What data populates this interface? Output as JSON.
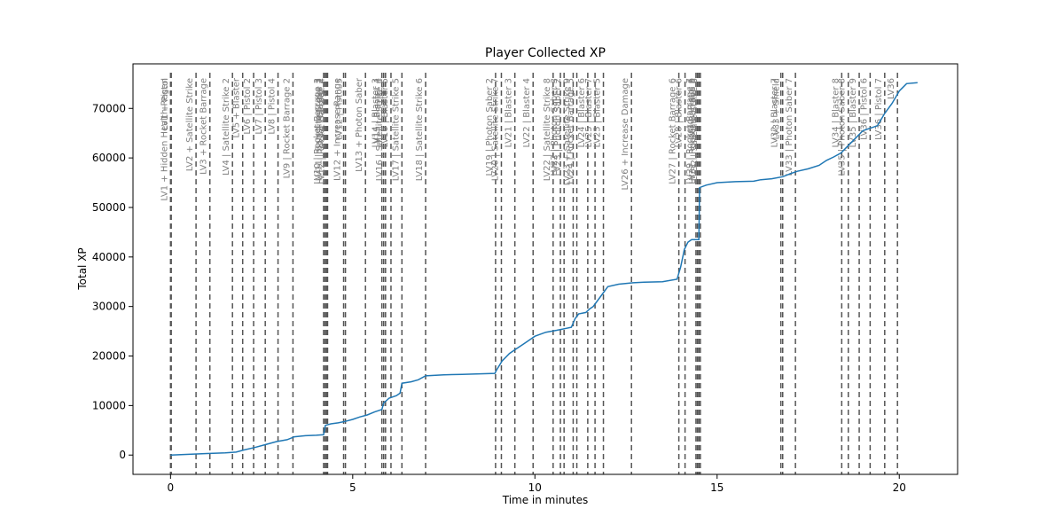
{
  "chart_data": {
    "type": "line",
    "title": "Player Collected XP",
    "xlabel": "Time in minutes",
    "ylabel": "Total XP",
    "xlim": [
      -1.03,
      21.6
    ],
    "ylim": [
      -3900,
      79000
    ],
    "xticks": [
      0,
      5,
      10,
      15,
      20
    ],
    "yticks": [
      0,
      10000,
      20000,
      30000,
      40000,
      50000,
      60000,
      70000
    ],
    "grid": false,
    "line_color": "#1f77b4",
    "event_line_color": "#555555",
    "event_label_color": "#7f7f7f",
    "series": [
      {
        "x": [
          0,
          0.5,
          1.0,
          1.5,
          1.8,
          2.0,
          2.3,
          2.6,
          2.9,
          3.2,
          3.4,
          3.7,
          4.0,
          4.2,
          4.25,
          4.4,
          4.6,
          4.8,
          5.0,
          5.2,
          5.4,
          5.6,
          5.8,
          5.85,
          6.0,
          6.2,
          6.3,
          6.35,
          6.6,
          6.8,
          7.0,
          7.5,
          8.0,
          8.5,
          8.9,
          8.95,
          9.1,
          9.3,
          9.5,
          9.7,
          9.9,
          10.0,
          10.3,
          10.6,
          10.8,
          11.0,
          11.1,
          11.2,
          11.4,
          11.5,
          11.6,
          11.8,
          12.0,
          12.3,
          12.7,
          13.0,
          13.5,
          13.9,
          14.0,
          14.1,
          14.2,
          14.3,
          14.4,
          14.5,
          14.52,
          14.7,
          15.0,
          15.5,
          16.0,
          16.2,
          16.5,
          16.8,
          17.0,
          17.2,
          17.5,
          17.8,
          18.0,
          18.2,
          18.4,
          18.6,
          18.8,
          19.0,
          19.2,
          19.4,
          19.6,
          19.8,
          20.0,
          20.2,
          20.5
        ],
        "y": [
          0,
          150,
          300,
          450,
          600,
          1000,
          1500,
          2100,
          2700,
          3100,
          3700,
          3900,
          4000,
          4100,
          6000,
          6300,
          6500,
          6800,
          7200,
          7700,
          8100,
          8700,
          9200,
          10500,
          11500,
          12000,
          12500,
          14500,
          14800,
          15200,
          16000,
          16200,
          16300,
          16400,
          16500,
          17200,
          19000,
          20500,
          21500,
          22500,
          23500,
          24000,
          24800,
          25200,
          25500,
          25800,
          27500,
          28500,
          28800,
          29500,
          30000,
          32000,
          34000,
          34500,
          34800,
          34900,
          35000,
          35500,
          38000,
          41500,
          43000,
          43500,
          43500,
          43500,
          54000,
          54500,
          55000,
          55200,
          55300,
          55600,
          55800,
          56200,
          56800,
          57300,
          57800,
          58500,
          59500,
          60200,
          61000,
          62500,
          64000,
          65500,
          66000,
          66500,
          69000,
          71000,
          73500,
          75000,
          75200
        ]
      }
    ],
    "events": [
      {
        "x": 0.0,
        "label": "LV1 +  Hidden  Health Regen"
      },
      {
        "x": 0.02,
        "label": "LV1 +  Pistol"
      },
      {
        "x": 0.7,
        "label": "LV2 +  Satellite Strike"
      },
      {
        "x": 1.08,
        "label": "LV3 +  Rocket Barrage"
      },
      {
        "x": 1.7,
        "label": "LV4 |  Satellite Strike 2"
      },
      {
        "x": 1.98,
        "label": "LV5 +  Blaster"
      },
      {
        "x": 2.28,
        "label": "LV6 |  Pistol 2"
      },
      {
        "x": 2.6,
        "label": "LV7 |  Pistol 3"
      },
      {
        "x": 2.95,
        "label": "LV8 |  Pistol 4"
      },
      {
        "x": 3.36,
        "label": "LV9 |  Rocket Barrage 2"
      },
      {
        "x": 4.2,
        "label": "LV10 |  Rocket Barrage 3"
      },
      {
        "x": 4.24,
        "label": "LV11 |  Satellite Strike 3"
      },
      {
        "x": 4.28,
        "label": "LV12 |  Blaster 2"
      },
      {
        "x": 4.31,
        "label": "LV12 |  Rocket Barrage 4"
      },
      {
        "x": 4.75,
        "label": "LV12 +  Increase Range"
      },
      {
        "x": 4.8,
        "label": "LV12 |  Pistol 5"
      },
      {
        "x": 5.35,
        "label": "LV13 +  Photon Saber"
      },
      {
        "x": 5.8,
        "label": "LV14 |  Blaster 3"
      },
      {
        "x": 5.85,
        "label": "LV15 |  Blaster 4"
      },
      {
        "x": 5.9,
        "label": "LV16 |  Satellite Strike 4"
      },
      {
        "x": 6.05,
        "label": "LV16 |  Blaster 5"
      },
      {
        "x": 6.35,
        "label": "LV17 |  Satellite Strike 5"
      },
      {
        "x": 7.0,
        "label": "LV18 |  Satellite Strike 6"
      },
      {
        "x": 8.92,
        "label": "LV19 |  Photon Saber 2"
      },
      {
        "x": 9.08,
        "label": "LV20 |  Satellite Strike 7"
      },
      {
        "x": 9.45,
        "label": "LV21 |  Blaster 3"
      },
      {
        "x": 9.95,
        "label": "LV22 |  Blaster 4"
      },
      {
        "x": 10.5,
        "label": "LV22 |  Satellite Strike 8"
      },
      {
        "x": 10.7,
        "label": "LV22 |  Photon Saber 3"
      },
      {
        "x": 10.8,
        "label": "LV23 |  Photon Saber 2"
      },
      {
        "x": 11.05,
        "label": "LV23 +  Satellite Strike 9"
      },
      {
        "x": 11.15,
        "label": "LV24 |  Rocket Barrage 5"
      },
      {
        "x": 11.45,
        "label": "LV24 |  Blaster 6"
      },
      {
        "x": 11.65,
        "label": "LV25 |  Blaster 7"
      },
      {
        "x": 11.88,
        "label": "LV25 |  Blaster 5"
      },
      {
        "x": 12.65,
        "label": "LV26 +  Increase Damage"
      },
      {
        "x": 13.95,
        "label": "LV27 |  Rocket Barrage 6"
      },
      {
        "x": 14.12,
        "label": "LV28 |  Blaster 6"
      },
      {
        "x": 14.42,
        "label": "LV29 |  Rocket Barrage 7"
      },
      {
        "x": 14.46,
        "label": "LV30 |  Pistol 6"
      },
      {
        "x": 14.5,
        "label": "LV31 |  Rocket Barrage 8"
      },
      {
        "x": 14.54,
        "label": "LV32 |  Satellite Strike 8"
      },
      {
        "x": 16.75,
        "label": "LV32 |  Blaster 7"
      },
      {
        "x": 16.8,
        "label": "LV33 +  Shield"
      },
      {
        "x": 17.15,
        "label": "LV33 |  Photon Saber 7"
      },
      {
        "x": 18.42,
        "label": "LV34 |  Blaster 8"
      },
      {
        "x": 18.6,
        "label": "LV35 |  Photon Saber 8"
      },
      {
        "x": 18.9,
        "label": "LV35 |  Blaster 9"
      },
      {
        "x": 19.2,
        "label": "LV36 |  Pistol 6"
      },
      {
        "x": 19.6,
        "label": "LV36 |  Pistol 7"
      },
      {
        "x": 19.95,
        "label": "LV36"
      }
    ]
  }
}
